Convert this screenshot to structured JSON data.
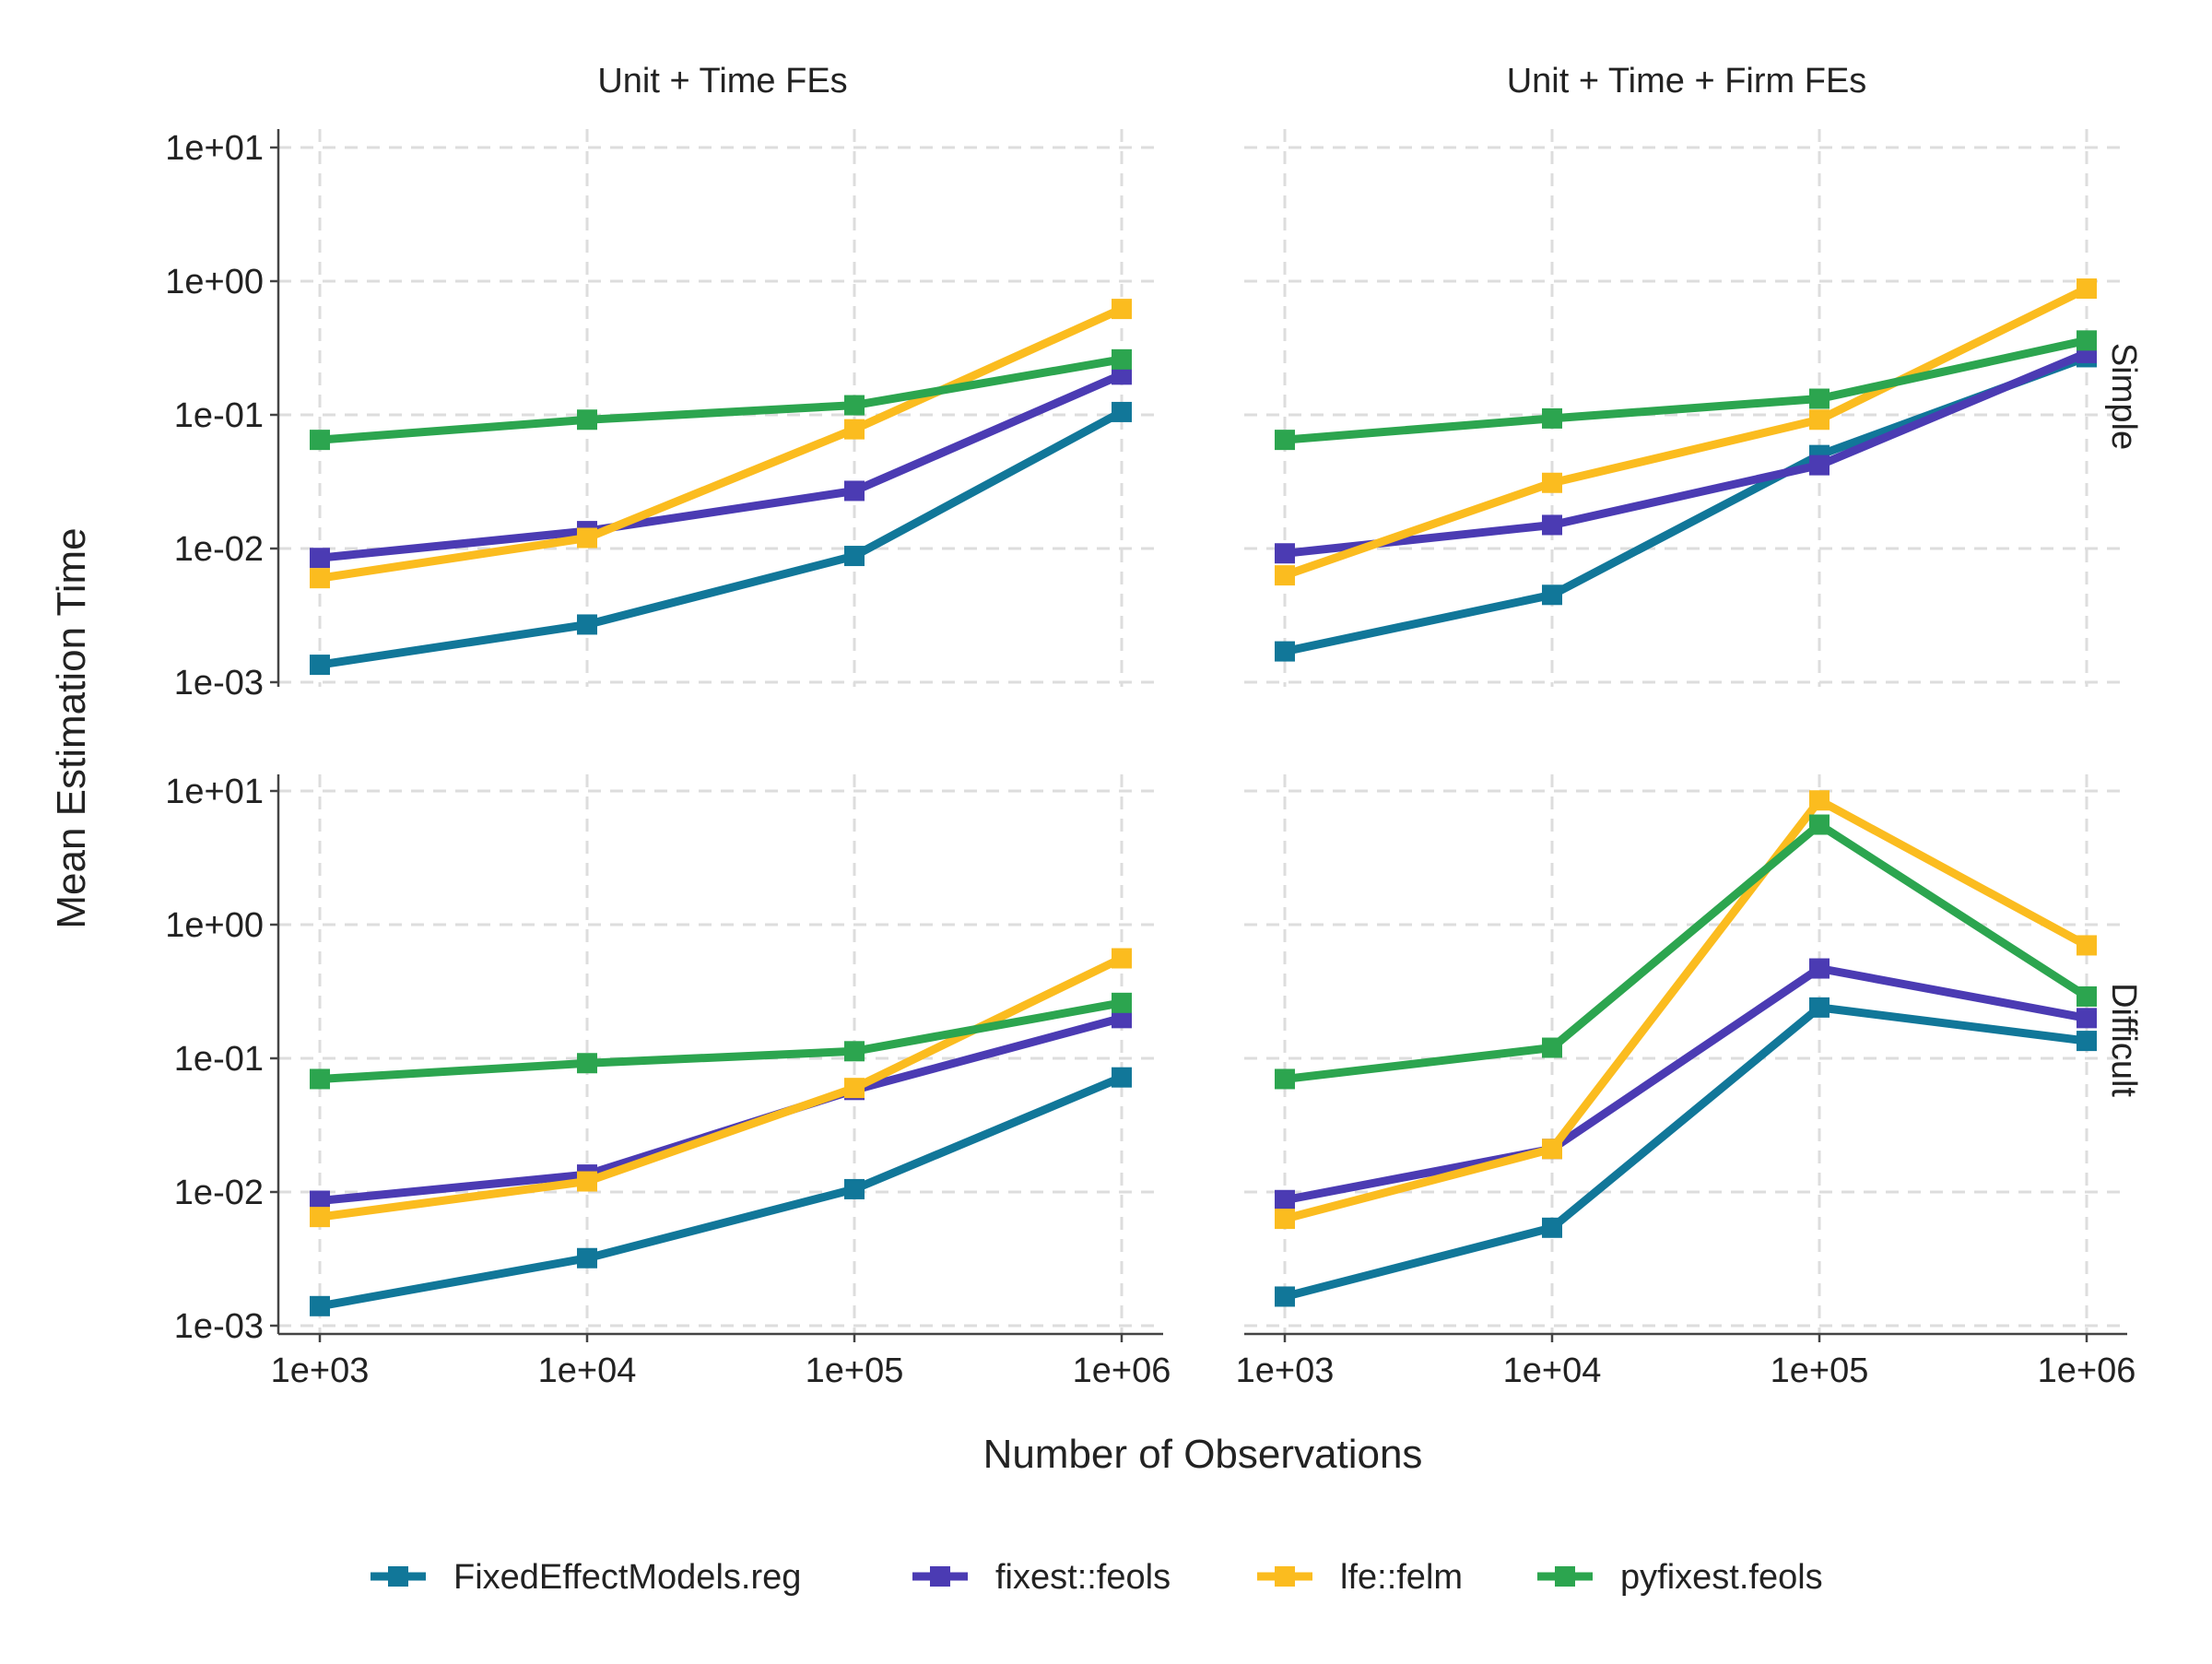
{
  "chart_data": {
    "type": "line",
    "xlabel": "Number of Observations",
    "ylabel": "Mean Estimation Time",
    "x": [
      1000,
      10000,
      100000,
      1000000
    ],
    "x_tick_labels": [
      "1e+03",
      "1e+04",
      "1e+05",
      "1e+06"
    ],
    "y_ticks": [
      0.001,
      0.01,
      0.1,
      1,
      10
    ],
    "y_tick_labels": [
      "1e-03",
      "1e-02",
      "1e-01",
      "1e+00",
      "1e+01"
    ],
    "x_scale": "log",
    "y_scale": "log",
    "grid": true,
    "legend_position": "bottom",
    "series_styles": [
      {
        "name": "FixedEffectModels.reg",
        "color": "#117799"
      },
      {
        "name": "fixest::feols",
        "color": "#4b3bb3"
      },
      {
        "name": "lfe::felm",
        "color": "#fbbc1f"
      },
      {
        "name": "pyfixest.feols",
        "color": "#2ca54f"
      }
    ],
    "column_labels": [
      "Unit + Time FEs",
      "Unit + Time + Firm FEs"
    ],
    "row_labels": [
      "Simple",
      "Difficult"
    ],
    "panels": [
      {
        "column": "Unit + Time FEs",
        "row": "Simple",
        "series": [
          {
            "name": "FixedEffectModels.reg",
            "values": [
              0.00135,
              0.0027,
              0.0088,
              0.105
            ]
          },
          {
            "name": "fixest::feols",
            "values": [
              0.0085,
              0.0135,
              0.027,
              0.2
            ]
          },
          {
            "name": "lfe::felm",
            "values": [
              0.006,
              0.012,
              0.078,
              0.62
            ]
          },
          {
            "name": "pyfixest.feols",
            "values": [
              0.065,
              0.092,
              0.118,
              0.26
            ]
          }
        ]
      },
      {
        "column": "Unit + Time + Firm FEs",
        "row": "Simple",
        "series": [
          {
            "name": "FixedEffectModels.reg",
            "values": [
              0.0017,
              0.0045,
              0.05,
              0.27
            ]
          },
          {
            "name": "fixest::feols",
            "values": [
              0.0092,
              0.015,
              0.042,
              0.29
            ]
          },
          {
            "name": "lfe::felm",
            "values": [
              0.0063,
              0.031,
              0.092,
              0.88
            ]
          },
          {
            "name": "pyfixest.feols",
            "values": [
              0.065,
              0.094,
              0.132,
              0.36
            ]
          }
        ]
      },
      {
        "column": "Unit + Time FEs",
        "row": "Difficult",
        "series": [
          {
            "name": "FixedEffectModels.reg",
            "values": [
              0.0014,
              0.0032,
              0.0105,
              0.072
            ]
          },
          {
            "name": "fixest::feols",
            "values": [
              0.0086,
              0.0135,
              0.058,
              0.2
            ]
          },
          {
            "name": "lfe::felm",
            "values": [
              0.0065,
              0.012,
              0.06,
              0.56
            ]
          },
          {
            "name": "pyfixest.feols",
            "values": [
              0.07,
              0.092,
              0.113,
              0.26
            ]
          }
        ]
      },
      {
        "column": "Unit + Time + Firm FEs",
        "row": "Difficult",
        "series": [
          {
            "name": "FixedEffectModels.reg",
            "values": [
              0.00165,
              0.0054,
              0.24,
              0.135
            ]
          },
          {
            "name": "fixest::feols",
            "values": [
              0.0087,
              0.021,
              0.47,
              0.2
            ]
          },
          {
            "name": "lfe::felm",
            "values": [
              0.0063,
              0.021,
              8.5,
              0.7
            ]
          },
          {
            "name": "pyfixest.feols",
            "values": [
              0.07,
              0.12,
              5.6,
              0.29
            ]
          }
        ]
      }
    ]
  }
}
